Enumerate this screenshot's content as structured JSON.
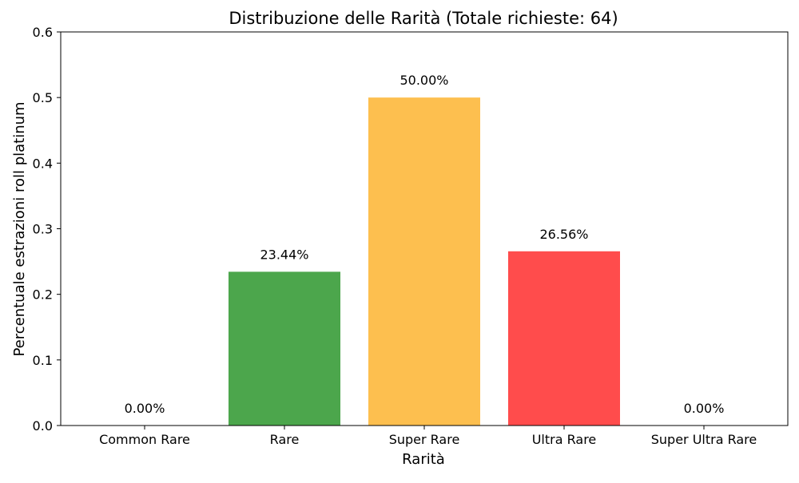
{
  "chart_data": {
    "type": "bar",
    "title": "Distribuzione delle Rarità (Totale richieste: 64)",
    "xlabel": "Rarità",
    "ylabel": "Percentuale estrazioni roll platinum",
    "categories": [
      "Common Rare",
      "Rare",
      "Super Rare",
      "Ultra Rare",
      "Super Ultra Rare"
    ],
    "values": [
      0.0,
      0.2344,
      0.5,
      0.2656,
      0.0
    ],
    "data_labels": [
      "0.00%",
      "23.44%",
      "50.00%",
      "26.56%",
      "0.00%"
    ],
    "colors": [
      "#1f77b4",
      "#4ca64c",
      "#fdbf4f",
      "#ff4c4c",
      "#9467bd"
    ],
    "ylim": [
      0,
      0.6
    ],
    "yticks": [
      "0.0",
      "0.1",
      "0.2",
      "0.3",
      "0.4",
      "0.5",
      "0.6"
    ],
    "grid": false,
    "legend": "none"
  }
}
